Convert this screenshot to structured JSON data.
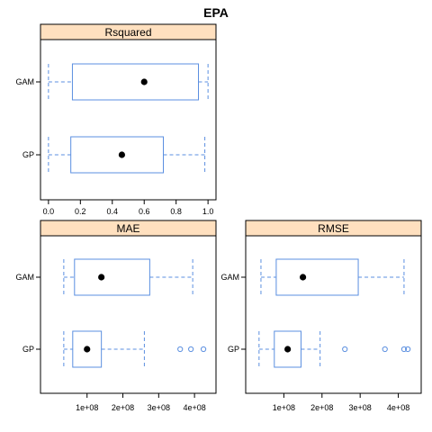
{
  "title": "EPA",
  "colors": {
    "box": "#5b8fe0",
    "strip": "#ffe0bf",
    "median": "#000000",
    "outlier": "#5b8fe0"
  },
  "chart_data": [
    {
      "type": "boxplot",
      "panel": "Rsquared",
      "categories": [
        "GAM",
        "GP"
      ],
      "xlim": [
        -0.05,
        1.05
      ],
      "ticks": [
        0.0,
        0.2,
        0.4,
        0.6,
        0.8,
        1.0
      ],
      "tick_labels": [
        "0.0",
        "0.2",
        "0.4",
        "0.6",
        "0.8",
        "1.0"
      ],
      "series": [
        {
          "category": "GAM",
          "min": 0.0,
          "q1": 0.15,
          "median": 0.6,
          "q3": 0.94,
          "max": 1.0,
          "outliers": []
        },
        {
          "category": "GP",
          "min": 0.0,
          "q1": 0.14,
          "median": 0.46,
          "q3": 0.72,
          "max": 0.98,
          "outliers": []
        }
      ]
    },
    {
      "type": "boxplot",
      "panel": "MAE",
      "categories": [
        "GAM",
        "GP"
      ],
      "xlim": [
        -30000000.0,
        460000000.0
      ],
      "ticks": [
        100000000.0,
        200000000.0,
        300000000.0,
        400000000.0
      ],
      "tick_labels": [
        "1e+08",
        "2e+08",
        "3e+08",
        "4e+08"
      ],
      "series": [
        {
          "category": "GAM",
          "min": 35000000.0,
          "q1": 65000000.0,
          "median": 140000000.0,
          "q3": 275000000.0,
          "max": 395000000.0,
          "outliers": []
        },
        {
          "category": "GP",
          "min": 35000000.0,
          "q1": 60000000.0,
          "median": 100000000.0,
          "q3": 140000000.0,
          "max": 260000000.0,
          "outliers": [
            360000000.0,
            390000000.0,
            425000000.0
          ]
        }
      ]
    },
    {
      "type": "boxplot",
      "panel": "RMSE",
      "categories": [
        "GAM",
        "GP"
      ],
      "xlim": [
        0.0,
        460000000.0
      ],
      "ticks": [
        100000000.0,
        200000000.0,
        300000000.0,
        400000000.0
      ],
      "tick_labels": [
        "1e+08",
        "2e+08",
        "3e+08",
        "4e+08"
      ],
      "series": [
        {
          "category": "GAM",
          "min": 40000000.0,
          "q1": 80000000.0,
          "median": 150000000.0,
          "q3": 295000000.0,
          "max": 415000000.0,
          "outliers": []
        },
        {
          "category": "GP",
          "min": 35000000.0,
          "q1": 75000000.0,
          "median": 110000000.0,
          "q3": 145000000.0,
          "max": 195000000.0,
          "outliers": [
            260000000.0,
            365000000.0,
            415000000.0,
            425000000.0
          ]
        }
      ]
    }
  ]
}
